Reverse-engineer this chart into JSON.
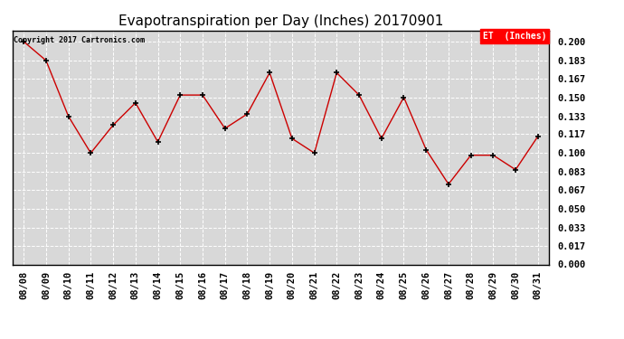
{
  "title": "Evapotranspiration per Day (Inches) 20170901",
  "copyright_text": "Copyright 2017 Cartronics.com",
  "legend_label": "ET  (Inches)",
  "legend_bg": "#ff0000",
  "legend_text_color": "#ffffff",
  "dates": [
    "08/08",
    "08/09",
    "08/10",
    "08/11",
    "08/12",
    "08/13",
    "08/14",
    "08/15",
    "08/16",
    "08/17",
    "08/18",
    "08/19",
    "08/20",
    "08/21",
    "08/22",
    "08/23",
    "08/24",
    "08/25",
    "08/26",
    "08/27",
    "08/28",
    "08/29",
    "08/30",
    "08/31"
  ],
  "values": [
    0.2,
    0.183,
    0.133,
    0.1,
    0.125,
    0.145,
    0.11,
    0.152,
    0.152,
    0.122,
    0.135,
    0.172,
    0.113,
    0.1,
    0.172,
    0.152,
    0.113,
    0.15,
    0.103,
    0.072,
    0.098,
    0.098,
    0.085,
    0.115
  ],
  "line_color": "#cc0000",
  "marker_color": "#000000",
  "bg_color": "#ffffff",
  "plot_bg_color": "#d8d8d8",
  "grid_color": "#ffffff",
  "ytick_values": [
    0.0,
    0.017,
    0.033,
    0.05,
    0.067,
    0.083,
    0.1,
    0.117,
    0.133,
    0.15,
    0.167,
    0.183,
    0.2
  ],
  "ylim": [
    0.0,
    0.2099
  ],
  "title_fontsize": 11,
  "tick_fontsize": 7.5,
  "copyright_fontsize": 6
}
